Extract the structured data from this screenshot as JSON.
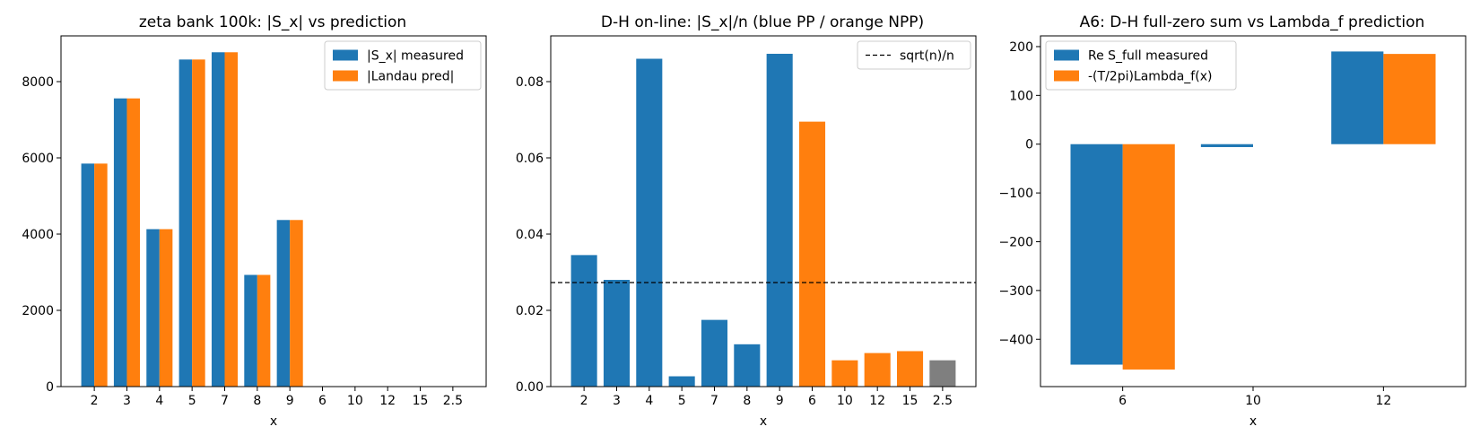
{
  "colors": {
    "blue": "#1f77b4",
    "orange": "#ff7f0e",
    "gray": "#7f7f7f"
  },
  "chart_data": [
    {
      "type": "bar",
      "title": "zeta bank 100k: |S_x| vs prediction",
      "xlabel": "x",
      "ylabel": "",
      "categories": [
        "2",
        "3",
        "4",
        "5",
        "7",
        "8",
        "9",
        "6",
        "10",
        "12",
        "15",
        "2.5"
      ],
      "series": [
        {
          "name": "|S_x| measured",
          "color": "#1f77b4",
          "values": [
            5850,
            7560,
            4130,
            8580,
            8770,
            2930,
            4370,
            0,
            0,
            0,
            0,
            0
          ]
        },
        {
          "name": "|Landau pred|",
          "color": "#ff7f0e",
          "values": [
            5850,
            7560,
            4130,
            8580,
            8770,
            2930,
            4370,
            0,
            0,
            0,
            0,
            0
          ]
        }
      ],
      "ylim": [
        0,
        9200
      ],
      "yticks": [
        0,
        2000,
        4000,
        6000,
        8000
      ],
      "ytick_labels": [
        "0",
        "2000",
        "4000",
        "6000",
        "8000"
      ],
      "legend": "top-right"
    },
    {
      "type": "bar",
      "title": "D-H on-line: |S_x|/n (blue PP / orange NPP)",
      "xlabel": "x",
      "ylabel": "",
      "categories": [
        "2",
        "3",
        "4",
        "5",
        "7",
        "8",
        "9",
        "6",
        "10",
        "12",
        "15",
        "2.5"
      ],
      "values": [
        0.0345,
        0.028,
        0.086,
        0.0027,
        0.0175,
        0.0111,
        0.0873,
        0.0695,
        0.0069,
        0.0088,
        0.0093,
        0.0069
      ],
      "bar_colors": [
        "#1f77b4",
        "#1f77b4",
        "#1f77b4",
        "#1f77b4",
        "#1f77b4",
        "#1f77b4",
        "#1f77b4",
        "#ff7f0e",
        "#ff7f0e",
        "#ff7f0e",
        "#ff7f0e",
        "#7f7f7f"
      ],
      "hline": {
        "name": "sqrt(n)/n",
        "value": 0.0273,
        "style": "dashed"
      },
      "ylim": [
        0,
        0.092
      ],
      "yticks": [
        0,
        0.02,
        0.04,
        0.06,
        0.08
      ],
      "ytick_labels": [
        "0.00",
        "0.02",
        "0.04",
        "0.06",
        "0.08"
      ],
      "legend": "top-right"
    },
    {
      "type": "bar",
      "title": "A6: D-H full-zero sum vs Lambda_f prediction",
      "xlabel": "x",
      "ylabel": "",
      "categories": [
        "6",
        "10",
        "12"
      ],
      "series": [
        {
          "name": "Re S_full measured",
          "color": "#1f77b4",
          "values": [
            -452,
            -6,
            190
          ]
        },
        {
          "name": "-(T/2pi)Lambda_f(x)",
          "color": "#ff7f0e",
          "values": [
            -462,
            0,
            185
          ]
        }
      ],
      "ylim": [
        -497,
        222
      ],
      "yticks": [
        200,
        100,
        0,
        -100,
        -200,
        -300,
        -400
      ],
      "ytick_labels": [
        "200",
        "100",
        "0",
        "−100",
        "−200",
        "−300",
        "−400"
      ],
      "legend": "top-left"
    }
  ]
}
